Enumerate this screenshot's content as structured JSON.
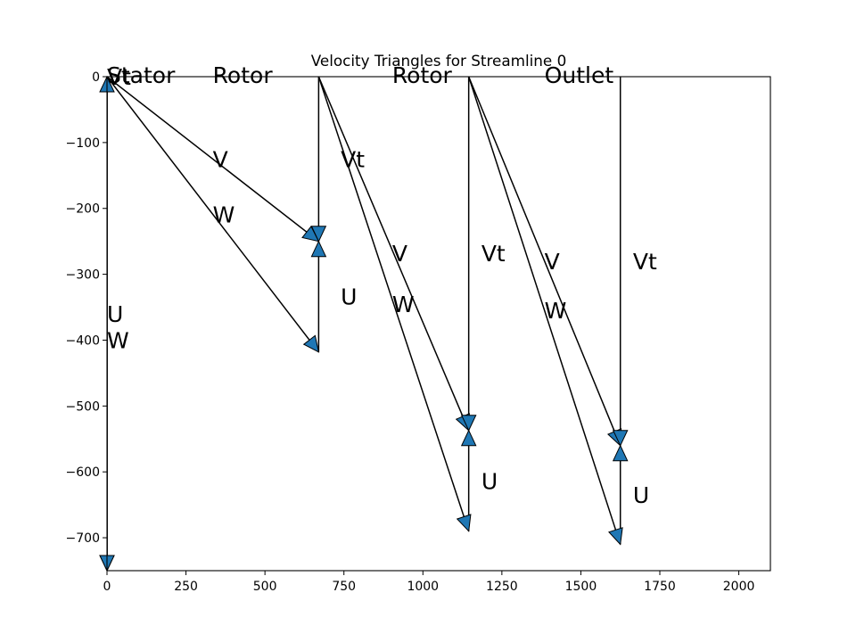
{
  "chart_data": {
    "type": "vector-diagram",
    "title": "Velocity Triangles for Streamline 0",
    "xlim": [
      0,
      2100
    ],
    "ylim": [
      -750,
      0
    ],
    "x_ticks": [
      0,
      250,
      500,
      750,
      1000,
      1250,
      1500,
      1750,
      2000
    ],
    "y_ticks": [
      0,
      -100,
      -200,
      -300,
      -400,
      -500,
      -600,
      -700
    ],
    "x_tick_labels": [
      "0",
      "250",
      "500",
      "750",
      "1000",
      "1250",
      "1500",
      "1750",
      "2000"
    ],
    "y_tick_labels": [
      "0",
      "−100",
      "−200",
      "−300",
      "−400",
      "−500",
      "−600",
      "−700"
    ],
    "arrow_color": "#1f77b4",
    "line_color": "#000000",
    "stages": [
      {
        "label": "Stator",
        "label_pos": [
          0,
          0
        ],
        "vectors": [
          {
            "name": "V",
            "from": [
              0,
              0
            ],
            "to": [
              0,
              -750
            ]
          },
          {
            "name": "W",
            "from": [
              0,
              0
            ],
            "to": [
              0,
              -750
            ]
          },
          {
            "name": "U",
            "from": [
              0,
              -750
            ],
            "to": [
              0,
              0
            ]
          },
          {
            "name": "Vt",
            "from": [
              0,
              0
            ],
            "to": [
              0,
              0
            ]
          }
        ],
        "annotations": [
          {
            "text": "Vt",
            "pos": [
              0,
              0
            ]
          },
          {
            "text": "U",
            "pos": [
              0,
              -360
            ]
          },
          {
            "text": "W",
            "pos": [
              0,
              -400
            ]
          }
        ]
      },
      {
        "label": "Rotor",
        "label_pos": [
          335,
          0
        ],
        "vectors": [
          {
            "name": "V",
            "from": [
              0,
              0
            ],
            "to": [
              670,
              -250
            ]
          },
          {
            "name": "W",
            "from": [
              0,
              0
            ],
            "to": [
              670,
              -418
            ]
          },
          {
            "name": "U",
            "from": [
              670,
              -418
            ],
            "to": [
              670,
              -250
            ]
          },
          {
            "name": "Vt",
            "from": [
              670,
              0
            ],
            "to": [
              670,
              -250
            ]
          }
        ],
        "annotations": [
          {
            "text": "V",
            "pos": [
              335,
              -125
            ]
          },
          {
            "text": "W",
            "pos": [
              335,
              -209
            ]
          },
          {
            "text": "U",
            "pos": [
              740,
              -334
            ]
          },
          {
            "text": "Vt",
            "pos": [
              740,
              -125
            ]
          }
        ]
      },
      {
        "label": "Rotor",
        "label_pos": [
          903,
          0
        ],
        "vectors": [
          {
            "name": "V",
            "from": [
              670,
              0
            ],
            "to": [
              1145,
              -537
            ]
          },
          {
            "name": "W",
            "from": [
              670,
              0
            ],
            "to": [
              1145,
              -690
            ]
          },
          {
            "name": "U",
            "from": [
              1145,
              -690
            ],
            "to": [
              1145,
              -537
            ]
          },
          {
            "name": "Vt",
            "from": [
              1145,
              0
            ],
            "to": [
              1145,
              -537
            ]
          }
        ],
        "annotations": [
          {
            "text": "V",
            "pos": [
              903,
              -268
            ]
          },
          {
            "text": "W",
            "pos": [
              903,
              -345
            ]
          },
          {
            "text": "U",
            "pos": [
              1185,
              -614
            ]
          },
          {
            "text": "Vt",
            "pos": [
              1185,
              -268
            ]
          }
        ]
      },
      {
        "label": "Outlet",
        "label_pos": [
          1385,
          0
        ],
        "vectors": [
          {
            "name": "V",
            "from": [
              1145,
              0
            ],
            "to": [
              1625,
              -560
            ]
          },
          {
            "name": "W",
            "from": [
              1145,
              0
            ],
            "to": [
              1625,
              -710
            ]
          },
          {
            "name": "U",
            "from": [
              1625,
              -710
            ],
            "to": [
              1625,
              -560
            ]
          },
          {
            "name": "Vt",
            "from": [
              1625,
              0
            ],
            "to": [
              1625,
              -560
            ]
          }
        ],
        "annotations": [
          {
            "text": "V",
            "pos": [
              1385,
              -280
            ]
          },
          {
            "text": "W",
            "pos": [
              1385,
              -355
            ]
          },
          {
            "text": "U",
            "pos": [
              1665,
              -635
            ]
          },
          {
            "text": "Vt",
            "pos": [
              1665,
              -280
            ]
          }
        ]
      }
    ]
  }
}
